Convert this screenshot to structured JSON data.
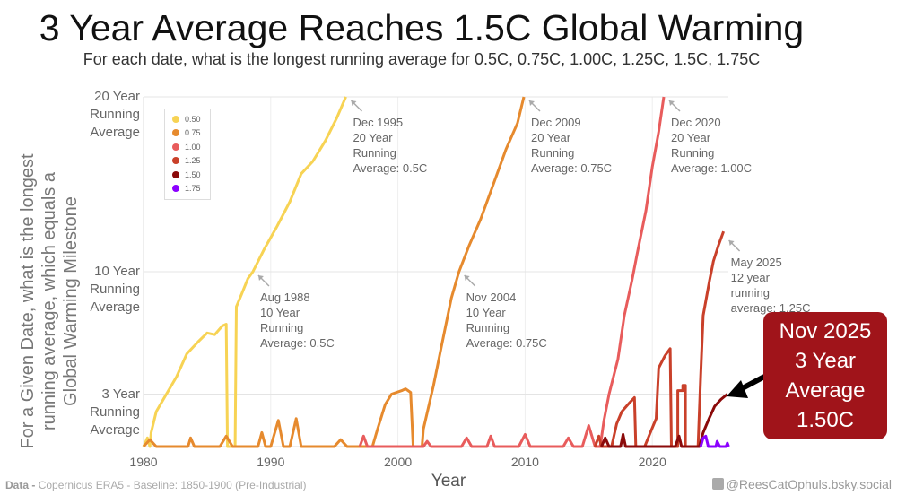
{
  "title": "3 Year Average Reaches 1.5C Global Warming",
  "subtitle": "For each date, what is the longest running average for 0.5C, 0.75C, 1.00C, 1.25C, 1.5C, 1.75C",
  "footer": {
    "source_label": "Data -",
    "source_text": "Copernicus ERA5 - Baseline: 1850-1900 (Pre-Industrial)",
    "credit": "@ReesCatOphuls.bsky.social"
  },
  "callout": {
    "line1": "Nov 2025",
    "line2": "3 Year",
    "line3": "Average",
    "line4": "1.50C"
  },
  "chart_data": {
    "type": "line",
    "xlabel": "Year",
    "ylabel": [
      "For a Given Date, what is the longest",
      "running average, which equals a",
      "Global Warming Milestone"
    ],
    "xlim": [
      1980,
      2026.5
    ],
    "ylim": [
      0,
      20
    ],
    "xticks": [
      1980,
      1990,
      2000,
      2010,
      2020
    ],
    "yticks": [
      {
        "value": 3,
        "label": [
          "3 Year",
          "Running",
          "Average"
        ]
      },
      {
        "value": 10,
        "label": [
          "10 Year",
          "Running",
          "Average"
        ]
      },
      {
        "value": 20,
        "label": [
          "20 Year",
          "Running",
          "Average"
        ]
      }
    ],
    "legend": {
      "placement": "top-left",
      "entries": [
        "0.50",
        "0.75",
        "1.00",
        "1.25",
        "1.50",
        "1.75"
      ]
    },
    "series": [
      {
        "name": "0.50",
        "color": "#f7d354",
        "points": [
          [
            1980,
            0
          ],
          [
            1980.3,
            0.5
          ],
          [
            1980.5,
            0
          ],
          [
            1980.6,
            0.8
          ],
          [
            1981,
            2
          ],
          [
            1981.8,
            3
          ],
          [
            1982.6,
            4
          ],
          [
            1983.4,
            5.3
          ],
          [
            1984.3,
            6
          ],
          [
            1985,
            6.5
          ],
          [
            1985.6,
            6.4
          ],
          [
            1986.2,
            6.9
          ],
          [
            1986.5,
            7
          ],
          [
            1986.6,
            0
          ],
          [
            1987.2,
            0
          ],
          [
            1987.3,
            8
          ],
          [
            1987.7,
            8.7
          ],
          [
            1988.2,
            9.6
          ],
          [
            1988.6,
            10
          ],
          [
            1989.5,
            11.3
          ],
          [
            1990.5,
            12.6
          ],
          [
            1991.5,
            14
          ],
          [
            1992.4,
            15.6
          ],
          [
            1993.3,
            16.3
          ],
          [
            1994.3,
            17.5
          ],
          [
            1995.2,
            18.8
          ],
          [
            1995.9,
            20
          ]
        ]
      },
      {
        "name": "0.75",
        "color": "#e68a2e",
        "points": [
          [
            1980,
            0
          ],
          [
            1980.5,
            0.4
          ],
          [
            1981,
            0
          ],
          [
            1983.5,
            0
          ],
          [
            1983.7,
            0.5
          ],
          [
            1984,
            0
          ],
          [
            1986,
            0
          ],
          [
            1986.5,
            0.6
          ],
          [
            1987,
            0
          ],
          [
            1989,
            0
          ],
          [
            1989.3,
            0.8
          ],
          [
            1989.6,
            0
          ],
          [
            1990,
            0
          ],
          [
            1990.6,
            1.5
          ],
          [
            1991,
            0
          ],
          [
            1991.5,
            0
          ],
          [
            1992,
            1.6
          ],
          [
            1992.4,
            0
          ],
          [
            1995,
            0
          ],
          [
            1995.5,
            0.4
          ],
          [
            1996,
            0
          ],
          [
            1998,
            0
          ],
          [
            1998.4,
            1
          ],
          [
            1999,
            2.4
          ],
          [
            1999.5,
            3
          ],
          [
            2000.3,
            3.2
          ],
          [
            2000.6,
            3.3
          ],
          [
            2001,
            3.1
          ],
          [
            2001.2,
            0
          ],
          [
            2001.9,
            0
          ],
          [
            2002,
            1
          ],
          [
            2002.8,
            3.5
          ],
          [
            2003.5,
            6
          ],
          [
            2004.2,
            8.5
          ],
          [
            2004.8,
            10
          ],
          [
            2005.6,
            11.5
          ],
          [
            2006.5,
            13
          ],
          [
            2007.5,
            15
          ],
          [
            2008.5,
            17
          ],
          [
            2009.4,
            18.5
          ],
          [
            2009.9,
            20
          ]
        ]
      },
      {
        "name": "1.00",
        "color": "#e85c5c",
        "points": [
          [
            1997,
            0
          ],
          [
            1997.3,
            0.6
          ],
          [
            1997.6,
            0
          ],
          [
            2002,
            0
          ],
          [
            2002.3,
            0.3
          ],
          [
            2002.6,
            0
          ],
          [
            2005,
            0
          ],
          [
            2005.4,
            0.5
          ],
          [
            2005.8,
            0
          ],
          [
            2007,
            0
          ],
          [
            2007.3,
            0.6
          ],
          [
            2007.6,
            0
          ],
          [
            2009.5,
            0
          ],
          [
            2010,
            0.7
          ],
          [
            2010.4,
            0
          ],
          [
            2013,
            0
          ],
          [
            2013.4,
            0.5
          ],
          [
            2013.8,
            0
          ],
          [
            2014.5,
            0
          ],
          [
            2015,
            1.2
          ],
          [
            2015.5,
            0
          ],
          [
            2015.9,
            0
          ],
          [
            2016.2,
            1.5
          ],
          [
            2016.6,
            3
          ],
          [
            2017.3,
            5
          ],
          [
            2017.8,
            7.5
          ],
          [
            2018.4,
            9.5
          ],
          [
            2018.8,
            11
          ],
          [
            2019.5,
            13.5
          ],
          [
            2020,
            16
          ],
          [
            2020.5,
            18
          ],
          [
            2020.9,
            20
          ]
        ]
      },
      {
        "name": "1.25",
        "color": "#c9402a",
        "points": [
          [
            2015.5,
            0
          ],
          [
            2015.8,
            0.6
          ],
          [
            2016,
            0
          ],
          [
            2016.8,
            0
          ],
          [
            2017.2,
            1.3
          ],
          [
            2017.6,
            2
          ],
          [
            2018.2,
            2.5
          ],
          [
            2018.6,
            2.8
          ],
          [
            2018.7,
            0
          ],
          [
            2019.4,
            0
          ],
          [
            2019.9,
            0.9
          ],
          [
            2020.3,
            1.6
          ],
          [
            2020.5,
            4.5
          ],
          [
            2021,
            5.2
          ],
          [
            2021.4,
            5.6
          ],
          [
            2021.5,
            0
          ],
          [
            2022,
            0
          ],
          [
            2022,
            3.2
          ],
          [
            2022.4,
            3.2
          ],
          [
            2022.4,
            3.5
          ],
          [
            2022.6,
            3.5
          ],
          [
            2022.6,
            0
          ],
          [
            2023.6,
            0
          ],
          [
            2023.8,
            4
          ],
          [
            2024,
            7.5
          ],
          [
            2024.5,
            9.5
          ],
          [
            2024.8,
            10.6
          ],
          [
            2025.2,
            11.5
          ],
          [
            2025.6,
            12.3
          ]
        ]
      },
      {
        "name": "1.50",
        "color": "#8b0a0a",
        "points": [
          [
            2016,
            0
          ],
          [
            2016.3,
            0.5
          ],
          [
            2016.6,
            0
          ],
          [
            2017.5,
            0
          ],
          [
            2017.7,
            0.7
          ],
          [
            2017.9,
            0
          ],
          [
            2021.8,
            0
          ],
          [
            2022.1,
            0.6
          ],
          [
            2022.3,
            0
          ],
          [
            2023.7,
            0
          ],
          [
            2024,
            0.8
          ],
          [
            2024.4,
            1.5
          ],
          [
            2024.9,
            2.3
          ],
          [
            2025.4,
            2.7
          ],
          [
            2025.9,
            3
          ]
        ]
      },
      {
        "name": "1.75",
        "color": "#8b00ff",
        "points": [
          [
            2023.8,
            0
          ],
          [
            2024,
            0.5
          ],
          [
            2024.2,
            0.6
          ],
          [
            2024.4,
            0
          ],
          [
            2025,
            0
          ],
          [
            2025.1,
            0.3
          ],
          [
            2025.3,
            0
          ],
          [
            2025.8,
            0
          ],
          [
            2025.9,
            0.2
          ],
          [
            2026,
            0
          ]
        ]
      }
    ],
    "annotations": [
      {
        "lines": [
          "Dec 1995",
          "20 Year",
          "Running",
          "Average: 0.5C"
        ],
        "x": 1995.9,
        "y": 20
      },
      {
        "lines": [
          "Aug 1988",
          "10 Year",
          "Running",
          "Average: 0.5C"
        ],
        "x": 1988.6,
        "y": 10
      },
      {
        "lines": [
          "Dec 2009",
          "20 Year",
          "Running",
          "Average: 0.75C"
        ],
        "x": 2009.9,
        "y": 20
      },
      {
        "lines": [
          "Nov 2004",
          "10 Year",
          "Running",
          "Average: 0.75C"
        ],
        "x": 2004.8,
        "y": 10
      },
      {
        "lines": [
          "Dec 2020",
          "20 Year",
          "Running",
          "Average: 1.00C"
        ],
        "x": 2020.9,
        "y": 20
      },
      {
        "lines": [
          "May 2025",
          "12 year",
          "running",
          "average: 1.25C"
        ],
        "x": 2025.6,
        "y": 12
      }
    ]
  }
}
